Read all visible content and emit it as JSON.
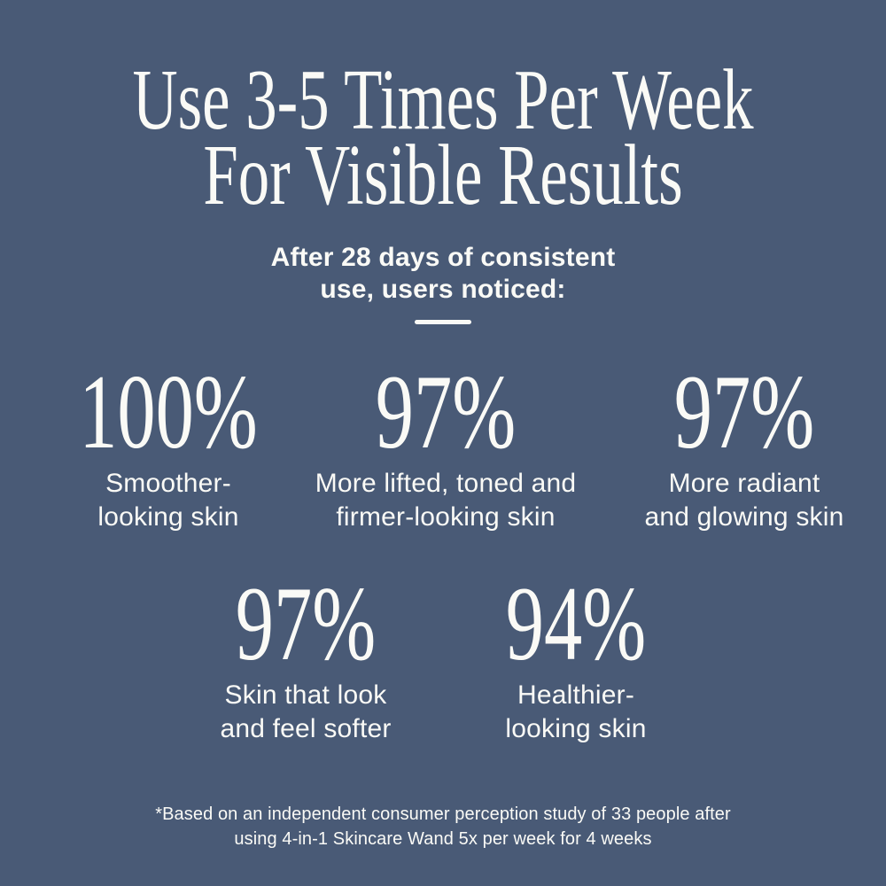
{
  "colors": {
    "background": "#495A76",
    "text": "#FAFAF6"
  },
  "header": {
    "title_line1": "Use 3-5 Times Per Week",
    "title_line2": "For Visible Results",
    "subtitle_line1": "After 28 days of consistent",
    "subtitle_line2": "use, users noticed:"
  },
  "stats": {
    "row1": [
      {
        "value": "100%",
        "label": "Smoother-\nlooking skin"
      },
      {
        "value": "97%",
        "label": "More lifted, toned and\nfirmer-looking skin"
      },
      {
        "value": "97%",
        "label": "More radiant\nand glowing skin"
      }
    ],
    "row2": [
      {
        "value": "97%",
        "label": "Skin that look\nand feel softer"
      },
      {
        "value": "94%",
        "label": "Healthier-\nlooking skin"
      }
    ]
  },
  "footnote": "*Based on an independent consumer perception study of 33 people after\nusing 4-in-1 Skincare Wand 5x per week for 4 weeks",
  "chart_data": {
    "type": "table",
    "title": "Use 3-5 Times Per Week For Visible Results",
    "subtitle": "After 28 days of consistent use, users noticed:",
    "categories": [
      "Smoother-looking skin",
      "More lifted, toned and firmer-looking skin",
      "More radiant and glowing skin",
      "Skin that look and feel softer",
      "Healthier-looking skin"
    ],
    "values": [
      100,
      97,
      97,
      97,
      94
    ],
    "unit": "%",
    "legend_position": "none",
    "footnote": "*Based on an independent consumer perception study of 33 people after using 4-in-1 Skincare Wand 5x per week for 4 weeks"
  }
}
